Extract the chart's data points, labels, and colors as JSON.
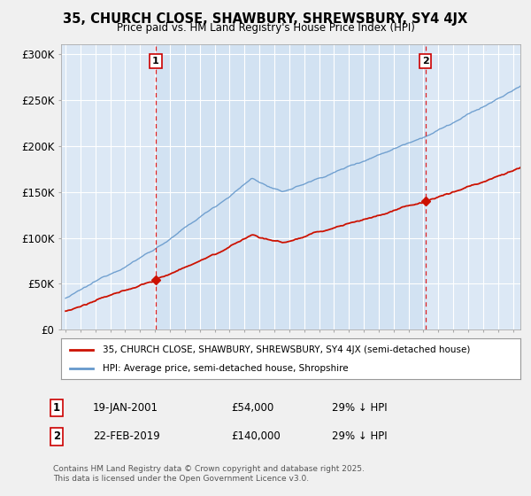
{
  "title": "35, CHURCH CLOSE, SHAWBURY, SHREWSBURY, SY4 4JX",
  "subtitle": "Price paid vs. HM Land Registry's House Price Index (HPI)",
  "fig_bg_color": "#f0f0f0",
  "plot_bg_color": "#dce8f5",
  "highlight_color": "#ccdff0",
  "hpi_color": "#6699cc",
  "price_color": "#cc1100",
  "vline_color": "#dd0000",
  "grid_color": "#b0c4d8",
  "ylim": [
    0,
    310000
  ],
  "yticks": [
    0,
    50000,
    100000,
    150000,
    200000,
    250000,
    300000
  ],
  "ytick_labels": [
    "£0",
    "£50K",
    "£100K",
    "£150K",
    "£200K",
    "£250K",
    "£300K"
  ],
  "sale1_date": 2001.05,
  "sale1_price": 54000,
  "sale1_label": "1",
  "sale2_date": 2019.13,
  "sale2_price": 140000,
  "sale2_label": "2",
  "legend_property": "35, CHURCH CLOSE, SHAWBURY, SHREWSBURY, SY4 4JX (semi-detached house)",
  "legend_hpi": "HPI: Average price, semi-detached house, Shropshire",
  "note1_label": "1",
  "note1_date": "19-JAN-2001",
  "note1_price": "£54,000",
  "note1_hpi": "29% ↓ HPI",
  "note2_label": "2",
  "note2_date": "22-FEB-2019",
  "note2_price": "£140,000",
  "note2_hpi": "29% ↓ HPI",
  "copyright": "Contains HM Land Registry data © Crown copyright and database right 2025.\nThis data is licensed under the Open Government Licence v3.0.",
  "xstart": 1995,
  "xend": 2025
}
